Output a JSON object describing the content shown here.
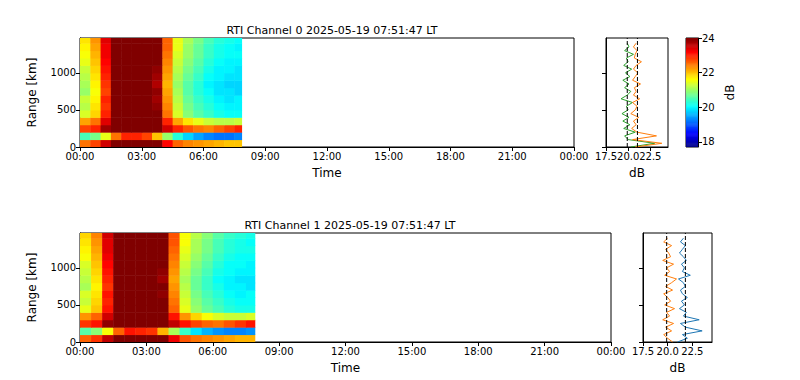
{
  "chart_data": [
    {
      "type": "heatmap",
      "title": "RTI Channel 0 2025-05-19 07:51:47 LT",
      "x_label": "Time",
      "y_label": "Range [km]",
      "xlim": [
        0,
        24
      ],
      "xticks": [
        {
          "value": 0,
          "label": "00:00"
        },
        {
          "value": 3,
          "label": "03:00"
        },
        {
          "value": 6,
          "label": "06:00"
        },
        {
          "value": 9,
          "label": "09:00"
        },
        {
          "value": 12,
          "label": "12:00"
        },
        {
          "value": 15,
          "label": "15:00"
        },
        {
          "value": 18,
          "label": "18:00"
        },
        {
          "value": 21,
          "label": "21:00"
        },
        {
          "value": 24,
          "label": "00:00"
        }
      ],
      "ylim": [
        0,
        1470
      ],
      "yticks": [
        0,
        500,
        1000
      ],
      "x_edges": [
        0,
        0.5,
        1,
        1.5,
        2,
        2.5,
        3,
        3.5,
        4,
        4.5,
        5,
        5.5,
        6,
        6.5,
        7,
        7.5,
        7.85
      ],
      "y_edges": [
        0,
        100,
        200,
        300,
        400,
        500,
        600,
        700,
        800,
        900,
        1000,
        1100,
        1200,
        1300,
        1400,
        1470
      ],
      "cells": [
        [
          22.5,
          22.8,
          23.5,
          24.6,
          25.2,
          25.3,
          25.1,
          24.3,
          23.2,
          22.6,
          22.4,
          22.3,
          22.2,
          22.1,
          22.0,
          22.0
        ],
        [
          20.5,
          20.8,
          21.5,
          22.5,
          23.0,
          23.0,
          22.8,
          22.0,
          21.0,
          20.3,
          19.8,
          19.5,
          19.3,
          19.2,
          19.2,
          19.3
        ],
        [
          22.8,
          23.0,
          23.8,
          24.8,
          25.3,
          25.3,
          25.2,
          24.5,
          23.5,
          23.0,
          22.7,
          22.5,
          22.4,
          22.6,
          22.8,
          23.0
        ],
        [
          22.2,
          22.5,
          23.4,
          24.6,
          25.1,
          25.2,
          25.0,
          24.2,
          23.0,
          22.2,
          21.8,
          21.5,
          21.3,
          21.2,
          21.2,
          21.3
        ],
        [
          21.4,
          21.9,
          23.0,
          24.5,
          25.0,
          25.1,
          24.9,
          24.0,
          22.5,
          21.4,
          20.9,
          20.6,
          20.4,
          20.2,
          20.1,
          20.1
        ],
        [
          21.2,
          21.8,
          22.9,
          24.4,
          25.0,
          25.0,
          24.9,
          23.9,
          22.4,
          21.3,
          20.8,
          20.5,
          20.3,
          20.1,
          20.0,
          20.0
        ],
        [
          21.3,
          21.7,
          23.0,
          24.5,
          25.1,
          25.0,
          24.8,
          23.8,
          22.3,
          21.2,
          20.7,
          20.4,
          20.2,
          20.0,
          19.9,
          20.0
        ],
        [
          21.0,
          21.6,
          22.8,
          24.3,
          25.0,
          25.1,
          24.9,
          23.9,
          22.2,
          21.1,
          20.6,
          20.3,
          20.1,
          19.9,
          19.9,
          19.8
        ],
        [
          21.1,
          21.7,
          22.9,
          24.4,
          25.0,
          25.0,
          24.8,
          23.7,
          22.1,
          21.0,
          20.6,
          20.3,
          20.0,
          19.9,
          19.8,
          19.8
        ],
        [
          21.2,
          21.8,
          23.0,
          24.5,
          25.1,
          25.1,
          24.9,
          23.8,
          22.2,
          21.1,
          20.7,
          20.4,
          20.1,
          20.0,
          19.9,
          19.9
        ],
        [
          21.3,
          21.9,
          23.1,
          24.6,
          25.0,
          25.0,
          24.8,
          23.9,
          22.3,
          21.2,
          20.8,
          20.5,
          20.2,
          20.0,
          20.0,
          19.9
        ],
        [
          21.5,
          22.0,
          23.2,
          24.6,
          25.1,
          25.1,
          24.9,
          24.0,
          22.4,
          21.3,
          20.9,
          20.6,
          20.3,
          20.1,
          20.0,
          20.0
        ],
        [
          21.6,
          22.1,
          23.3,
          24.7,
          25.1,
          25.2,
          25.0,
          24.0,
          22.5,
          21.4,
          21.0,
          20.7,
          20.4,
          20.2,
          20.1,
          20.1
        ],
        [
          21.7,
          22.2,
          23.3,
          24.7,
          25.2,
          25.2,
          25.0,
          24.1,
          22.6,
          21.5,
          21.0,
          20.7,
          20.4,
          20.2,
          20.1,
          20.0
        ],
        [
          21.8,
          22.3,
          23.4,
          24.8,
          25.2,
          25.2,
          25.1,
          24.1,
          22.6,
          21.5,
          21.1,
          20.8,
          20.5,
          20.3,
          20.2,
          20.1
        ]
      ],
      "colorbar": {
        "range": [
          17.7,
          24
        ],
        "ticks": [
          18,
          20,
          22,
          24
        ],
        "label": "dB"
      }
    },
    {
      "type": "profile",
      "x_label": "dB",
      "xlim": [
        17.5,
        24.5
      ],
      "xticks": [
        17.5,
        {
          "value": 20,
          "label": "20.0"
        },
        22.5
      ],
      "ylim": [
        0,
        1470
      ],
      "yticks": [
        0,
        500,
        1000
      ],
      "tick_labels": "x",
      "y": [
        0,
        50,
        100,
        150,
        200,
        250,
        300,
        350,
        400,
        450,
        500,
        550,
        600,
        650,
        700,
        750,
        800,
        850,
        900,
        950,
        1000,
        1050,
        1100,
        1150,
        1200,
        1250,
        1300,
        1350,
        1400
      ],
      "series": [
        {
          "color": "#2ca02c",
          "values": [
            20.3,
            23.0,
            20.0,
            19.6,
            20.8,
            19.5,
            20.2,
            19.4,
            20.1,
            19.3,
            20.0,
            19.8,
            20.5,
            19.2,
            19.9,
            20.3,
            19.6,
            20.1,
            19.4,
            20.2,
            19.7,
            20.4,
            19.5,
            20.0,
            19.8,
            20.6,
            19.6,
            20.1,
            19.9
          ]
        },
        {
          "color": "#ff7f0e",
          "values": [
            20.8,
            23.8,
            20.5,
            23.2,
            21.0,
            20.4,
            20.9,
            20.6,
            21.2,
            20.3,
            20.8,
            21.0,
            20.5,
            21.3,
            20.6,
            20.9,
            20.7,
            21.4,
            20.5,
            20.8,
            21.1,
            20.6,
            20.9,
            21.5,
            20.7,
            20.8,
            21.0,
            20.6,
            20.9
          ]
        }
      ],
      "reference_lines": [
        19.9,
        21.05
      ]
    },
    {
      "type": "heatmap",
      "title": "RTI Channel 1 2025-05-19 07:51:47 LT",
      "x_label": "Time",
      "y_label": "Range [km]",
      "xlim": [
        0,
        24
      ],
      "xticks": [
        {
          "value": 0,
          "label": "00:00"
        },
        {
          "value": 3,
          "label": "03:00"
        },
        {
          "value": 6,
          "label": "06:00"
        },
        {
          "value": 9,
          "label": "09:00"
        },
        {
          "value": 12,
          "label": "12:00"
        },
        {
          "value": 15,
          "label": "15:00"
        },
        {
          "value": 18,
          "label": "18:00"
        },
        {
          "value": 21,
          "label": "21:00"
        },
        {
          "value": 24,
          "label": "00:00"
        }
      ],
      "ylim": [
        0,
        1470
      ],
      "yticks": [
        0,
        500,
        1000
      ],
      "x_edges": [
        0,
        0.5,
        1,
        1.5,
        2,
        2.5,
        3,
        3.5,
        4,
        4.5,
        5,
        5.5,
        6,
        6.5,
        7,
        7.5,
        7.9
      ],
      "y_edges": [
        0,
        100,
        200,
        300,
        400,
        500,
        600,
        700,
        800,
        900,
        1000,
        1100,
        1200,
        1300,
        1400,
        1470
      ],
      "cells": [
        [
          22.6,
          22.9,
          23.6,
          24.7,
          25.2,
          25.3,
          25.1,
          24.4,
          23.3,
          22.7,
          22.5,
          22.4,
          22.3,
          22.2,
          22.1,
          22.1
        ],
        [
          20.6,
          20.9,
          21.6,
          22.6,
          23.1,
          23.0,
          22.9,
          22.1,
          21.1,
          20.4,
          19.9,
          19.6,
          19.4,
          19.3,
          19.3,
          19.4
        ],
        [
          22.9,
          23.1,
          23.9,
          24.9,
          25.3,
          25.4,
          25.2,
          24.6,
          23.6,
          23.1,
          22.8,
          22.6,
          22.5,
          22.7,
          22.9,
          23.1
        ],
        [
          22.3,
          22.6,
          23.5,
          24.7,
          25.2,
          25.2,
          25.1,
          24.3,
          23.1,
          22.3,
          21.9,
          21.6,
          21.4,
          21.3,
          21.3,
          21.4
        ],
        [
          21.5,
          22.0,
          23.1,
          24.6,
          25.1,
          25.1,
          25.0,
          24.1,
          22.6,
          21.5,
          21.0,
          20.7,
          20.5,
          20.3,
          20.2,
          20.2
        ],
        [
          21.3,
          21.9,
          23.0,
          24.5,
          25.0,
          25.1,
          24.9,
          24.0,
          22.5,
          21.4,
          20.9,
          20.6,
          20.4,
          20.2,
          20.1,
          20.1
        ],
        [
          21.4,
          21.8,
          23.1,
          24.6,
          25.1,
          25.1,
          24.9,
          23.9,
          22.4,
          21.3,
          20.8,
          20.5,
          20.3,
          20.1,
          20.0,
          20.1
        ],
        [
          21.1,
          21.7,
          22.9,
          24.4,
          25.0,
          25.1,
          24.9,
          24.0,
          22.3,
          21.2,
          20.7,
          20.4,
          20.2,
          20.0,
          20.0,
          19.9
        ],
        [
          21.2,
          21.8,
          23.0,
          24.5,
          25.1,
          25.0,
          24.9,
          23.8,
          22.2,
          21.1,
          20.7,
          20.4,
          20.1,
          20.0,
          19.9,
          19.9
        ],
        [
          21.3,
          21.9,
          23.1,
          24.6,
          25.1,
          25.1,
          25.0,
          23.9,
          22.3,
          21.2,
          20.8,
          20.5,
          20.2,
          20.1,
          20.0,
          20.0
        ],
        [
          21.4,
          22.0,
          23.2,
          24.7,
          25.1,
          25.1,
          24.9,
          24.0,
          22.4,
          21.3,
          20.9,
          20.6,
          20.3,
          20.1,
          20.1,
          20.0
        ],
        [
          21.6,
          22.1,
          23.3,
          24.7,
          25.1,
          25.2,
          25.0,
          24.1,
          22.5,
          21.4,
          21.0,
          20.7,
          20.4,
          20.2,
          20.1,
          20.1
        ],
        [
          21.7,
          22.2,
          23.4,
          24.8,
          25.2,
          25.2,
          25.0,
          24.1,
          22.6,
          21.5,
          21.1,
          20.8,
          20.5,
          20.3,
          20.2,
          20.2
        ],
        [
          21.8,
          22.3,
          23.4,
          24.8,
          25.2,
          25.3,
          25.1,
          24.2,
          22.7,
          21.6,
          21.1,
          20.8,
          20.5,
          20.3,
          20.2,
          20.1
        ],
        [
          21.9,
          22.4,
          23.5,
          24.9,
          25.3,
          25.3,
          25.1,
          24.2,
          22.7,
          21.6,
          21.2,
          20.9,
          20.6,
          20.4,
          20.3,
          20.2
        ]
      ],
      "color_range": [
        17.7,
        24
      ]
    },
    {
      "type": "profile",
      "x_label": "dB",
      "xlim": [
        17.5,
        24.5
      ],
      "xticks": [
        17.5,
        {
          "value": 20,
          "label": "20.0"
        },
        22.5
      ],
      "ylim": [
        0,
        1470
      ],
      "yticks": [
        0,
        500,
        1000
      ],
      "tick_labels": "x",
      "y": [
        0,
        50,
        100,
        150,
        200,
        250,
        300,
        350,
        400,
        450,
        500,
        550,
        600,
        650,
        700,
        750,
        800,
        850,
        900,
        950,
        1000,
        1050,
        1100,
        1150,
        1200,
        1250,
        1300,
        1350,
        1400
      ],
      "series": [
        {
          "color": "#ff7f0e",
          "values": [
            20.5,
            20.0,
            19.6,
            20.4,
            19.8,
            20.6,
            19.5,
            20.2,
            19.9,
            20.7,
            19.7,
            20.3,
            20.0,
            19.6,
            20.5,
            19.8,
            20.4,
            20.9,
            19.7,
            20.2,
            19.9,
            20.6,
            19.5,
            20.3,
            20.1,
            19.8,
            20.4,
            19.6,
            20.0
          ]
        },
        {
          "color": "#1f77b4",
          "values": [
            21.0,
            22.0,
            21.5,
            23.5,
            21.8,
            21.3,
            23.2,
            21.6,
            21.9,
            21.2,
            21.7,
            21.4,
            22.0,
            21.5,
            21.3,
            21.8,
            21.6,
            21.1,
            22.3,
            21.5,
            21.7,
            21.4,
            21.9,
            21.6,
            21.2,
            21.5,
            21.8,
            21.3,
            21.6
          ]
        }
      ],
      "reference_lines": [
        19.9,
        21.8
      ]
    }
  ]
}
